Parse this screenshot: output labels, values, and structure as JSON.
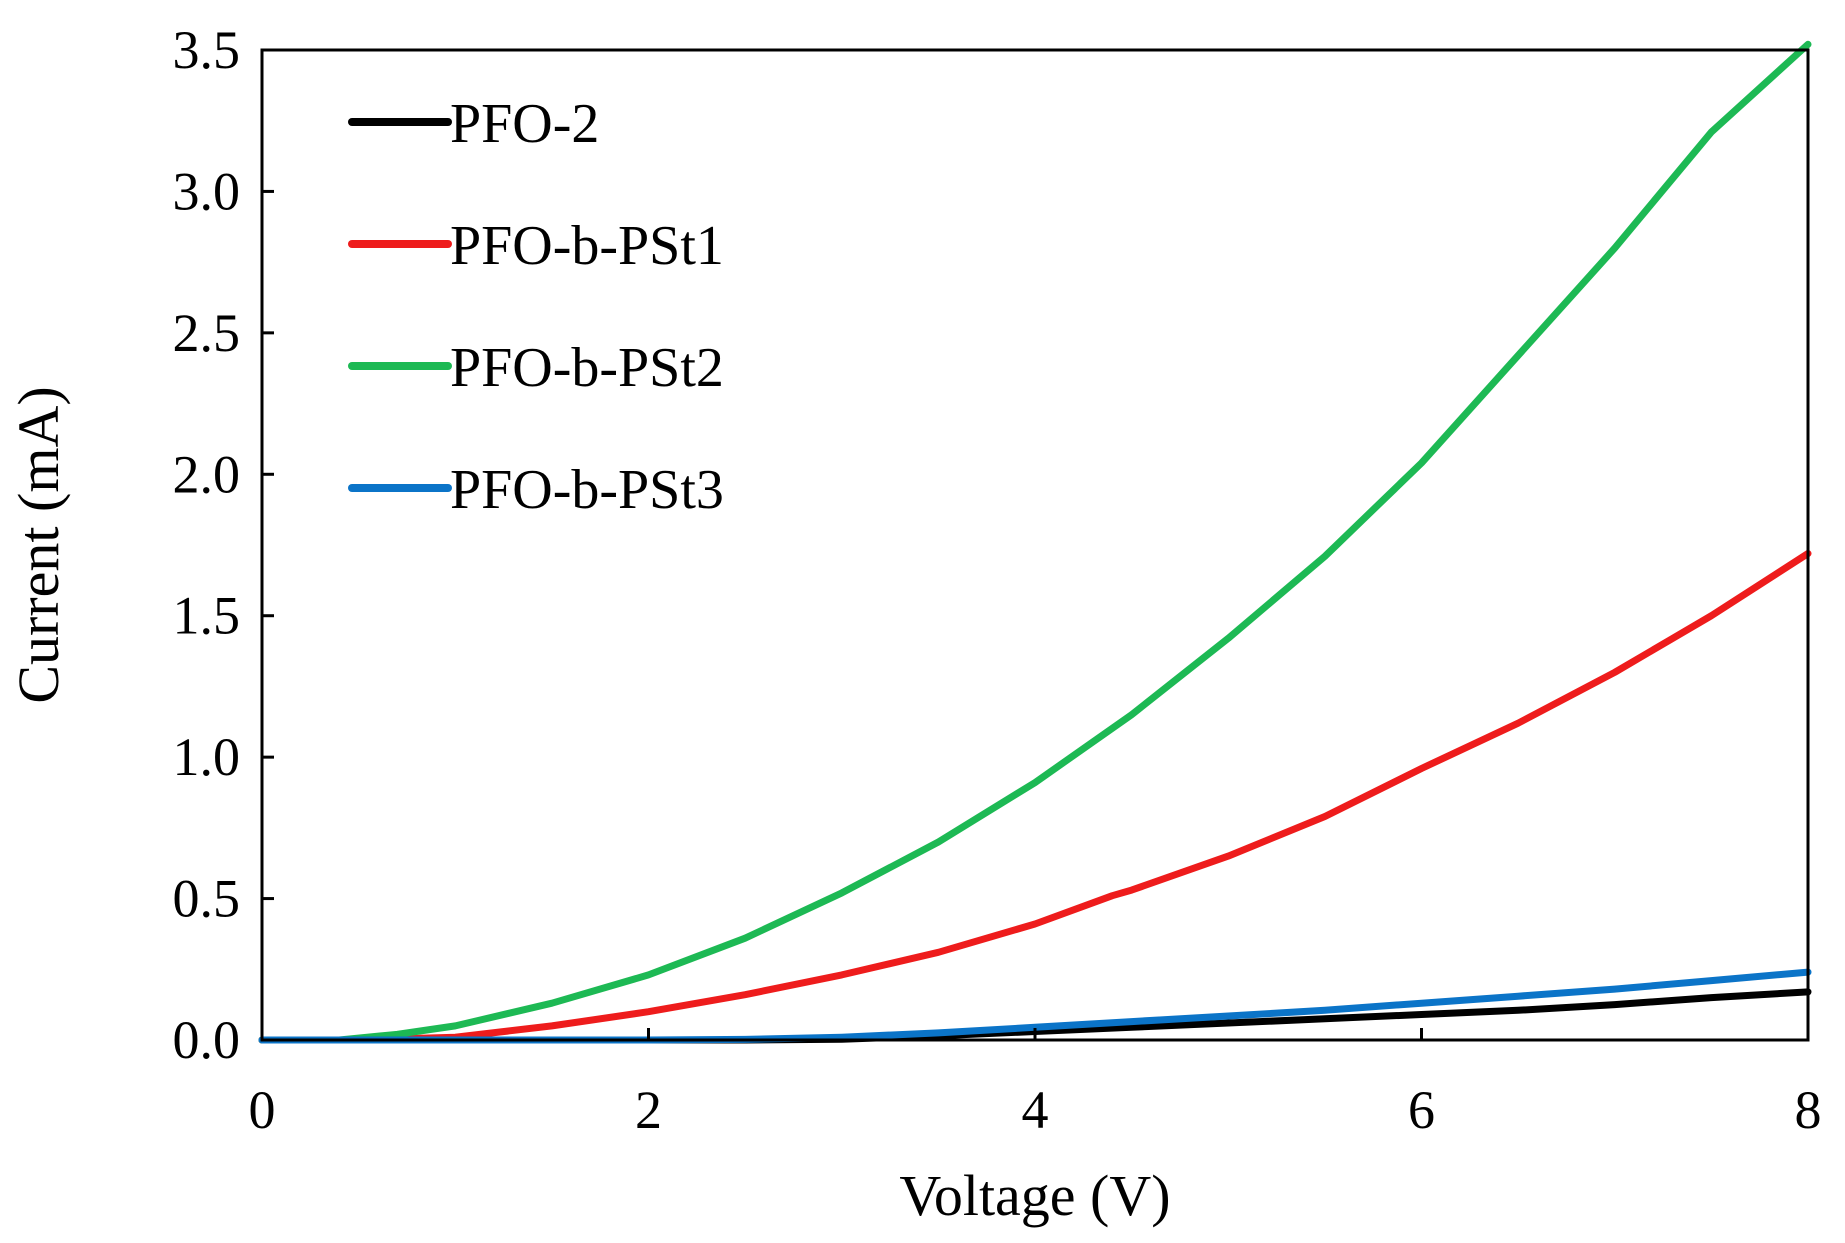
{
  "chart_data": {
    "type": "line",
    "title": "",
    "xlabel": "Voltage (V)",
    "ylabel": "Current (mA)",
    "xlim": [
      0,
      8
    ],
    "ylim": [
      0,
      3.5
    ],
    "xticks": [
      0,
      2,
      4,
      6,
      8
    ],
    "xtick_labels": [
      "0",
      "2",
      "4",
      "6",
      "8"
    ],
    "yticks": [
      0,
      0.5,
      1.0,
      1.5,
      2.0,
      2.5,
      3.0,
      3.5
    ],
    "ytick_labels": [
      "0.0",
      "0.5",
      "1.0",
      "1.5",
      "2.0",
      "2.5",
      "3.0",
      "3.5"
    ],
    "grid": false,
    "legend_position": "top-left",
    "series": [
      {
        "name": "PFO-2",
        "color": "#000000",
        "x": [
          0,
          1,
          2,
          2.5,
          3,
          3.5,
          4,
          4.5,
          5,
          5.5,
          6,
          6.5,
          7,
          7.5,
          8
        ],
        "y": [
          0,
          0,
          0,
          0,
          0.003,
          0.015,
          0.03,
          0.045,
          0.06,
          0.075,
          0.09,
          0.105,
          0.125,
          0.15,
          0.17
        ]
      },
      {
        "name": "PFO-b-PSt1",
        "color": "#ee1c1c",
        "x": [
          0,
          0.5,
          1,
          1.5,
          2,
          2.5,
          3,
          3.5,
          4,
          4.4,
          4.5,
          5,
          5.5,
          6,
          6.5,
          7,
          7.5,
          8
        ],
        "y": [
          0,
          0,
          0.01,
          0.05,
          0.1,
          0.16,
          0.23,
          0.31,
          0.41,
          0.51,
          0.53,
          0.65,
          0.79,
          0.96,
          1.12,
          1.3,
          1.5,
          1.72
        ]
      },
      {
        "name": "PFO-b-PSt2",
        "color": "#1db954",
        "x": [
          0,
          0.4,
          0.7,
          1,
          1.5,
          2,
          2.5,
          3,
          3.5,
          4,
          4.5,
          5,
          5.5,
          6,
          6.5,
          7,
          7.5,
          8
        ],
        "y": [
          0,
          0,
          0.02,
          0.05,
          0.13,
          0.23,
          0.36,
          0.52,
          0.7,
          0.91,
          1.15,
          1.42,
          1.71,
          2.04,
          2.42,
          2.8,
          3.21,
          3.52
        ]
      },
      {
        "name": "PFO-b-PSt3",
        "color": "#0b74c8",
        "x": [
          0,
          1,
          2,
          2.5,
          3,
          3.5,
          4,
          4.5,
          5,
          5.5,
          6,
          6.5,
          7,
          7.5,
          8
        ],
        "y": [
          0,
          0,
          0,
          0.002,
          0.01,
          0.025,
          0.045,
          0.065,
          0.085,
          0.105,
          0.13,
          0.155,
          0.18,
          0.21,
          0.24
        ]
      }
    ]
  }
}
